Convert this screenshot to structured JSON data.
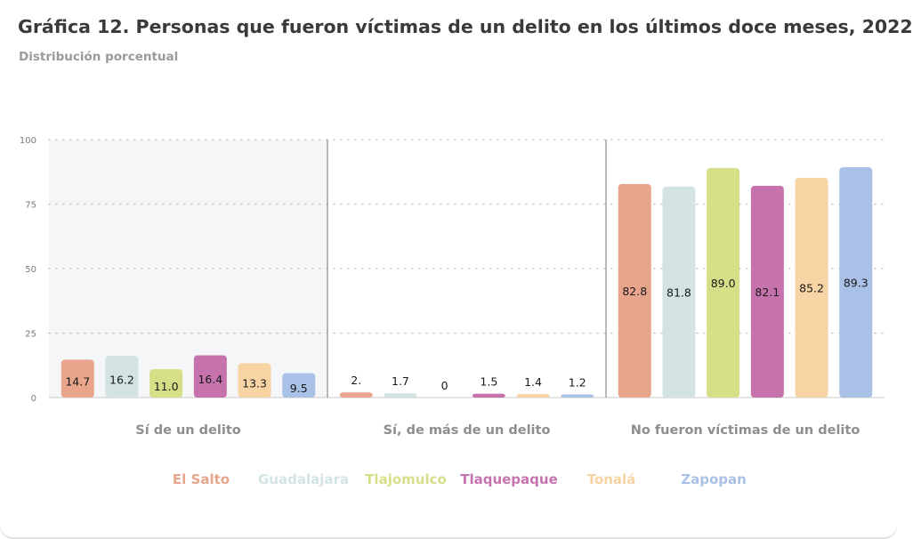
{
  "header": {
    "title": "Gráfica 12. Personas que fueron víctimas de un delito en los últimos doce meses, 2022",
    "subtitle": "Distribución porcentual"
  },
  "colors": {
    "El Salto": "#e8a58c",
    "Guadalajara": "#d3e3e3",
    "Tlajomulco": "#d6df88",
    "Tlaquepaque": "#c673ad",
    "Tonalá": "#f8d3a3",
    "Zapopan": "#a9c1e6"
  },
  "chart_data": {
    "type": "bar",
    "title": "Gráfica 12. Personas que fueron víctimas de un delito en los últimos doce meses, 2022",
    "subtitle": "Distribución porcentual",
    "categories": [
      "Sí de un delito",
      "Sí, de más de un delito",
      "No fueron víctimas de un delito"
    ],
    "ylim": [
      0,
      100
    ],
    "yticks": [
      "0",
      "25",
      "50",
      "75",
      "100"
    ],
    "grid": true,
    "legend_position": "bottom",
    "series": [
      {
        "name": "El Salto",
        "values": [
          14.7,
          2.0,
          82.8
        ],
        "labels": [
          "14.7",
          "2.",
          "82.8"
        ]
      },
      {
        "name": "Guadalajara",
        "values": [
          16.2,
          1.7,
          81.8
        ],
        "labels": [
          "16.2",
          "1.7",
          "81.8"
        ]
      },
      {
        "name": "Tlajomulco",
        "values": [
          11.0,
          0,
          89.0
        ],
        "labels": [
          "11.0",
          "0",
          "89.0"
        ]
      },
      {
        "name": "Tlaquepaque",
        "values": [
          16.4,
          1.5,
          82.1
        ],
        "labels": [
          "16.4",
          "1.5",
          "82.1"
        ]
      },
      {
        "name": "Tonalá",
        "values": [
          13.3,
          1.4,
          85.2
        ],
        "labels": [
          "13.3",
          "1.4",
          "85.2"
        ]
      },
      {
        "name": "Zapopan",
        "values": [
          9.5,
          1.2,
          89.3
        ],
        "labels": [
          "9.5",
          "1.2",
          "89.3"
        ]
      }
    ]
  }
}
